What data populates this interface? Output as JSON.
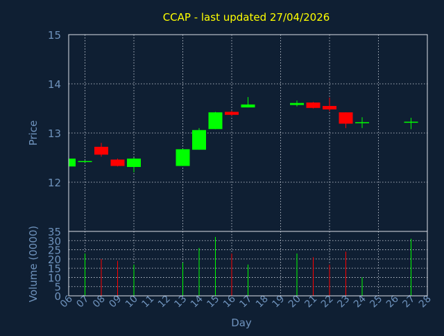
{
  "chart_data": {
    "type": "candlestick",
    "title": "CCAP - last updated 27/04/2026",
    "xlabel": "Day",
    "price_panel": {
      "ylabel": "Price",
      "ylim": [
        11.0,
        15.0
      ],
      "yticks": [
        12,
        13,
        14,
        15
      ],
      "grid": true
    },
    "volume_panel": {
      "ylabel": "Volume (0000)",
      "ylim": [
        0,
        35
      ],
      "yticks": [
        0,
        5,
        10,
        15,
        20,
        25,
        30,
        35
      ],
      "grid": true
    },
    "x_tick_labels": [
      "06",
      "07",
      "08",
      "09",
      "10",
      "11",
      "12",
      "13",
      "14",
      "15",
      "16",
      "17",
      "18",
      "19",
      "20",
      "21",
      "22",
      "23",
      "24",
      "25",
      "26",
      "27",
      "28"
    ],
    "colors": {
      "up": "#00ff00",
      "down": "#ff0000"
    },
    "candles": [
      {
        "day": "06",
        "open": 12.32,
        "high": 12.5,
        "low": 12.3,
        "close": 12.48,
        "volume": 0
      },
      {
        "day": "07",
        "open": 12.41,
        "high": 12.44,
        "low": 12.4,
        "close": 12.43,
        "volume": 23
      },
      {
        "day": "08",
        "open": 12.72,
        "high": 12.8,
        "low": 12.52,
        "close": 12.56,
        "volume": 20
      },
      {
        "day": "09",
        "open": 12.46,
        "high": 12.48,
        "low": 12.32,
        "close": 12.33,
        "volume": 19
      },
      {
        "day": "10",
        "open": 12.31,
        "high": 12.5,
        "low": 12.2,
        "close": 12.48,
        "volume": 17
      },
      {
        "day": "13",
        "open": 12.33,
        "high": 12.68,
        "low": 12.33,
        "close": 12.67,
        "volume": 18
      },
      {
        "day": "14",
        "open": 12.66,
        "high": 13.1,
        "low": 12.66,
        "close": 13.06,
        "volume": 26
      },
      {
        "day": "15",
        "open": 13.08,
        "high": 13.43,
        "low": 13.08,
        "close": 13.42,
        "volume": 32
      },
      {
        "day": "16",
        "open": 13.43,
        "high": 13.45,
        "low": 13.35,
        "close": 13.37,
        "volume": 23
      },
      {
        "day": "17",
        "open": 13.52,
        "high": 13.73,
        "low": 13.52,
        "close": 13.58,
        "volume": 17
      },
      {
        "day": "20",
        "open": 13.57,
        "high": 13.66,
        "low": 13.54,
        "close": 13.61,
        "volume": 23
      },
      {
        "day": "21",
        "open": 13.62,
        "high": 13.63,
        "low": 13.5,
        "close": 13.51,
        "volume": 21
      },
      {
        "day": "22",
        "open": 13.55,
        "high": 13.72,
        "low": 13.44,
        "close": 13.48,
        "volume": 17
      },
      {
        "day": "23",
        "open": 13.42,
        "high": 13.42,
        "low": 13.1,
        "close": 13.19,
        "volume": 24
      },
      {
        "day": "24",
        "open": 13.2,
        "high": 13.32,
        "low": 13.1,
        "close": 13.22,
        "volume": 10
      },
      {
        "day": "27",
        "open": 13.21,
        "high": 13.31,
        "low": 13.08,
        "close": 13.23,
        "volume": 31
      }
    ]
  }
}
